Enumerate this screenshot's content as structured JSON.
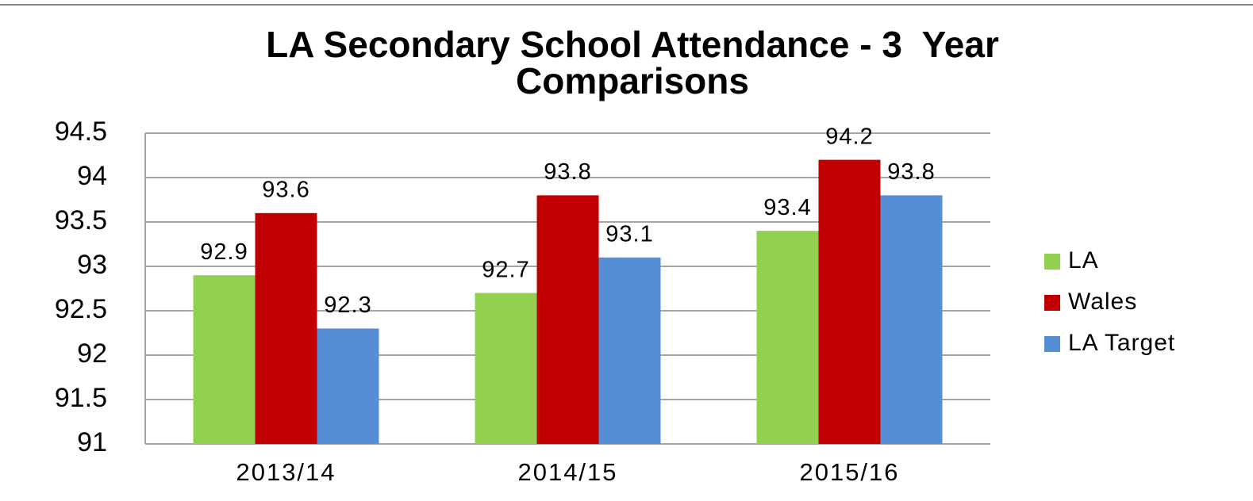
{
  "chart_data": {
    "type": "bar",
    "title": [
      "LA Secondary School Attendance - 3  Year",
      "Comparisons"
    ],
    "categories": [
      "2013/14",
      "2014/15",
      "2015/16"
    ],
    "series": [
      {
        "name": "LA",
        "color": "#92d050",
        "values": [
          92.9,
          92.7,
          93.4
        ]
      },
      {
        "name": "Wales",
        "color": "#c00000",
        "values": [
          93.6,
          93.8,
          94.2
        ]
      },
      {
        "name": "LA Target",
        "color": "#558ed5",
        "values": [
          92.3,
          93.1,
          93.8
        ]
      }
    ],
    "ylim": [
      91,
      94.5
    ],
    "yticks": [
      91,
      91.5,
      92,
      92.5,
      93,
      93.5,
      94,
      94.5
    ],
    "grid": true,
    "legend": "right"
  }
}
